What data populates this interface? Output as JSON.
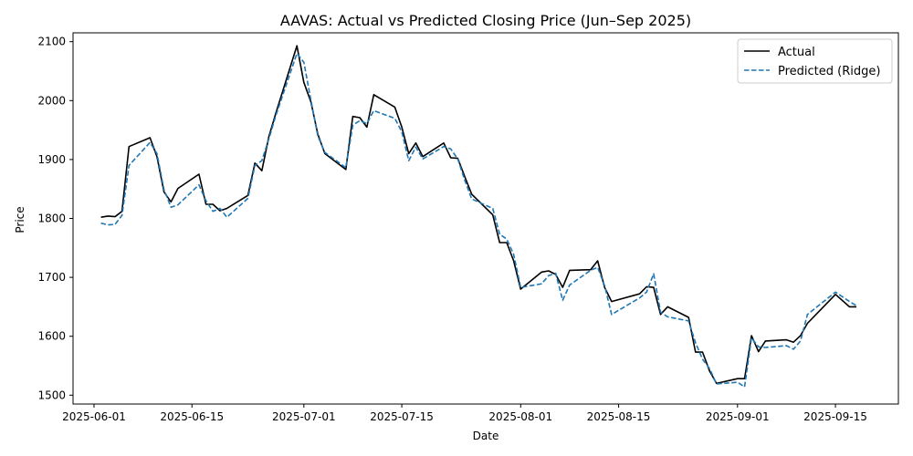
{
  "chart_data": {
    "type": "line",
    "title": "AAVAS: Actual vs Predicted Closing Price (Jun–Sep 2025)",
    "xlabel": "Date",
    "ylabel": "Price",
    "xlim": [
      "2025-05-29",
      "2025-09-24"
    ],
    "ylim": [
      1485,
      2115
    ],
    "xticks": [
      "2025-06-01",
      "2025-06-15",
      "2025-07-01",
      "2025-07-15",
      "2025-08-01",
      "2025-08-15",
      "2025-09-01",
      "2025-09-15"
    ],
    "yticks": [
      1500,
      1600,
      1700,
      1800,
      1900,
      2000,
      2100
    ],
    "grid": false,
    "legend": "upper right",
    "series": [
      {
        "name": "Actual",
        "color": "#000000",
        "style": "solid",
        "points": [
          [
            "2025-06-02",
            1802
          ],
          [
            "2025-06-03",
            1804
          ],
          [
            "2025-06-04",
            1803
          ],
          [
            "2025-06-05",
            1812
          ],
          [
            "2025-06-06",
            1922
          ],
          [
            "2025-06-09",
            1937
          ],
          [
            "2025-06-10",
            1905
          ],
          [
            "2025-06-11",
            1845
          ],
          [
            "2025-06-12",
            1828
          ],
          [
            "2025-06-13",
            1851
          ],
          [
            "2025-06-16",
            1875
          ],
          [
            "2025-06-17",
            1824
          ],
          [
            "2025-06-18",
            1824
          ],
          [
            "2025-06-19",
            1813
          ],
          [
            "2025-06-20",
            1817
          ],
          [
            "2025-06-23",
            1839
          ],
          [
            "2025-06-24",
            1894
          ],
          [
            "2025-06-25",
            1881
          ],
          [
            "2025-06-26",
            1939
          ],
          [
            "2025-06-27",
            1979
          ],
          [
            "2025-06-30",
            2093
          ],
          [
            "2025-07-01",
            2031
          ],
          [
            "2025-07-02",
            1998
          ],
          [
            "2025-07-03",
            1943
          ],
          [
            "2025-07-04",
            1910
          ],
          [
            "2025-07-07",
            1883
          ],
          [
            "2025-07-08",
            1973
          ],
          [
            "2025-07-09",
            1971
          ],
          [
            "2025-07-10",
            1955
          ],
          [
            "2025-07-11",
            2010
          ],
          [
            "2025-07-14",
            1989
          ],
          [
            "2025-07-15",
            1955
          ],
          [
            "2025-07-16",
            1910
          ],
          [
            "2025-07-17",
            1928
          ],
          [
            "2025-07-18",
            1905
          ],
          [
            "2025-07-21",
            1928
          ],
          [
            "2025-07-22",
            1903
          ],
          [
            "2025-07-23",
            1902
          ],
          [
            "2025-07-24",
            1871
          ],
          [
            "2025-07-25",
            1841
          ],
          [
            "2025-07-28",
            1806
          ],
          [
            "2025-07-29",
            1759
          ],
          [
            "2025-07-30",
            1759
          ],
          [
            "2025-07-31",
            1728
          ],
          [
            "2025-08-01",
            1680
          ],
          [
            "2025-08-04",
            1709
          ],
          [
            "2025-08-05",
            1711
          ],
          [
            "2025-08-06",
            1705
          ],
          [
            "2025-08-07",
            1683
          ],
          [
            "2025-08-08",
            1712
          ],
          [
            "2025-08-11",
            1713
          ],
          [
            "2025-08-12",
            1728
          ],
          [
            "2025-08-13",
            1683
          ],
          [
            "2025-08-14",
            1659
          ],
          [
            "2025-08-18",
            1672
          ],
          [
            "2025-08-19",
            1684
          ],
          [
            "2025-08-20",
            1683
          ],
          [
            "2025-08-21",
            1637
          ],
          [
            "2025-08-22",
            1650
          ],
          [
            "2025-08-25",
            1632
          ],
          [
            "2025-08-26",
            1573
          ],
          [
            "2025-08-27",
            1573
          ],
          [
            "2025-08-28",
            1541
          ],
          [
            "2025-08-29",
            1520
          ],
          [
            "2025-09-01",
            1528
          ],
          [
            "2025-09-02",
            1528
          ],
          [
            "2025-09-03",
            1601
          ],
          [
            "2025-09-04",
            1574
          ],
          [
            "2025-09-05",
            1592
          ],
          [
            "2025-09-08",
            1594
          ],
          [
            "2025-09-09",
            1590
          ],
          [
            "2025-09-10",
            1601
          ],
          [
            "2025-09-11",
            1622
          ],
          [
            "2025-09-15",
            1671
          ],
          [
            "2025-09-17",
            1650
          ],
          [
            "2025-09-18",
            1650
          ]
        ]
      },
      {
        "name": "Predicted (Ridge)",
        "color": "#1f77b4",
        "style": "dashed",
        "points": [
          [
            "2025-06-02",
            1792
          ],
          [
            "2025-06-03",
            1789
          ],
          [
            "2025-06-04",
            1790
          ],
          [
            "2025-06-05",
            1805
          ],
          [
            "2025-06-06",
            1890
          ],
          [
            "2025-06-09",
            1929
          ],
          [
            "2025-06-10",
            1910
          ],
          [
            "2025-06-11",
            1849
          ],
          [
            "2025-06-12",
            1819
          ],
          [
            "2025-06-13",
            1823
          ],
          [
            "2025-06-16",
            1857
          ],
          [
            "2025-06-17",
            1830
          ],
          [
            "2025-06-18",
            1812
          ],
          [
            "2025-06-19",
            1817
          ],
          [
            "2025-06-20",
            1802
          ],
          [
            "2025-06-23",
            1834
          ],
          [
            "2025-06-24",
            1890
          ],
          [
            "2025-06-25",
            1898
          ],
          [
            "2025-06-26",
            1935
          ],
          [
            "2025-06-27",
            1975
          ],
          [
            "2025-06-30",
            2080
          ],
          [
            "2025-07-01",
            2065
          ],
          [
            "2025-07-02",
            2001
          ],
          [
            "2025-07-03",
            1940
          ],
          [
            "2025-07-04",
            1912
          ],
          [
            "2025-07-07",
            1886
          ],
          [
            "2025-07-08",
            1958
          ],
          [
            "2025-07-09",
            1966
          ],
          [
            "2025-07-10",
            1961
          ],
          [
            "2025-07-11",
            1983
          ],
          [
            "2025-07-14",
            1970
          ],
          [
            "2025-07-15",
            1947
          ],
          [
            "2025-07-16",
            1898
          ],
          [
            "2025-07-17",
            1921
          ],
          [
            "2025-07-18",
            1901
          ],
          [
            "2025-07-21",
            1922
          ],
          [
            "2025-07-22",
            1918
          ],
          [
            "2025-07-23",
            1901
          ],
          [
            "2025-07-24",
            1865
          ],
          [
            "2025-07-25",
            1833
          ],
          [
            "2025-07-28",
            1817
          ],
          [
            "2025-07-29",
            1773
          ],
          [
            "2025-07-30",
            1765
          ],
          [
            "2025-07-31",
            1739
          ],
          [
            "2025-08-01",
            1683
          ],
          [
            "2025-08-04",
            1689
          ],
          [
            "2025-08-05",
            1703
          ],
          [
            "2025-08-06",
            1707
          ],
          [
            "2025-08-07",
            1661
          ],
          [
            "2025-08-08",
            1687
          ],
          [
            "2025-08-11",
            1712
          ],
          [
            "2025-08-12",
            1717
          ],
          [
            "2025-08-13",
            1686
          ],
          [
            "2025-08-14",
            1637
          ],
          [
            "2025-08-18",
            1665
          ],
          [
            "2025-08-19",
            1675
          ],
          [
            "2025-08-20",
            1706
          ],
          [
            "2025-08-21",
            1641
          ],
          [
            "2025-08-22",
            1633
          ],
          [
            "2025-08-25",
            1626
          ],
          [
            "2025-08-26",
            1589
          ],
          [
            "2025-08-27",
            1561
          ],
          [
            "2025-08-28",
            1545
          ],
          [
            "2025-08-29",
            1519
          ],
          [
            "2025-09-01",
            1522
          ],
          [
            "2025-09-02",
            1514
          ],
          [
            "2025-09-03",
            1597
          ],
          [
            "2025-09-04",
            1582
          ],
          [
            "2025-09-05",
            1581
          ],
          [
            "2025-09-08",
            1584
          ],
          [
            "2025-09-09",
            1578
          ],
          [
            "2025-09-10",
            1592
          ],
          [
            "2025-09-11",
            1637
          ],
          [
            "2025-09-15",
            1675
          ],
          [
            "2025-09-17",
            1659
          ],
          [
            "2025-09-18",
            1652
          ]
        ]
      }
    ]
  }
}
